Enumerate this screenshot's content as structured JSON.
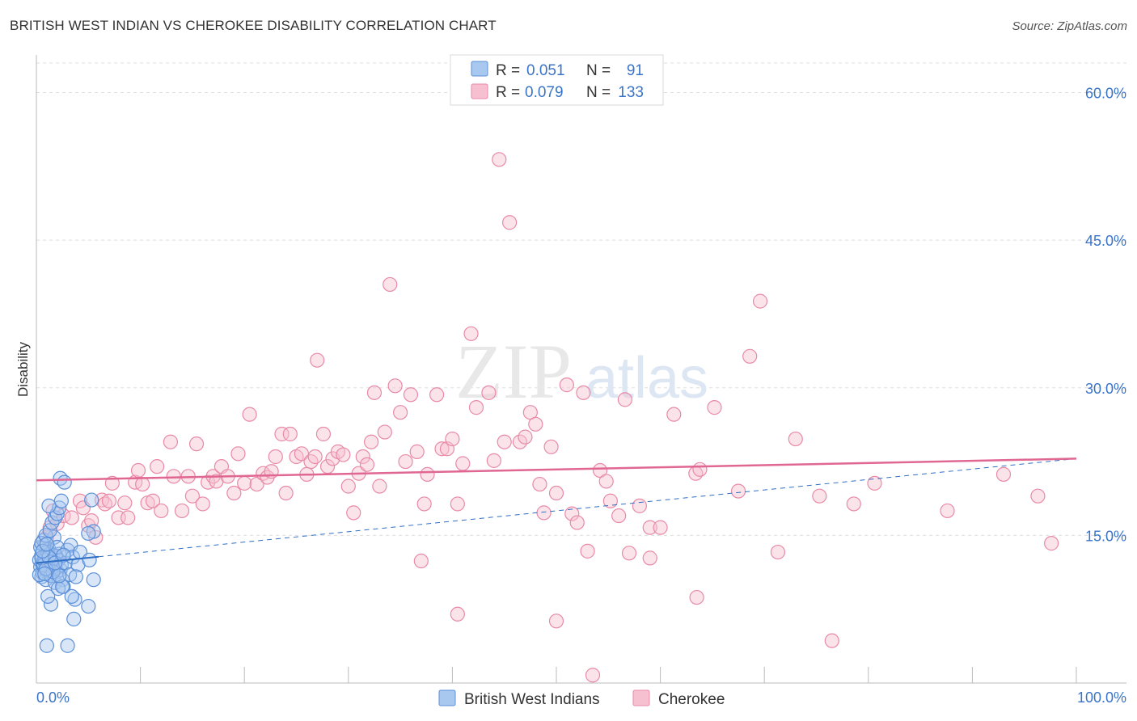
{
  "header": {
    "title": "BRITISH WEST INDIAN VS CHEROKEE DISABILITY CORRELATION CHART",
    "source": "Source: ZipAtlas.com"
  },
  "watermark": {
    "zip": "ZIP",
    "atlas": "atlas"
  },
  "colors": {
    "blue_fill": "#a9c8f0",
    "blue_stroke": "#5b8fd8",
    "blue_line": "#2f6ec4",
    "pink_fill": "#f7c0d0",
    "pink_stroke": "#e88aa8",
    "pink_line": "#e06792",
    "label": "#3a74c9",
    "grid": "#dddddd"
  },
  "legend": {
    "rows": [
      {
        "r_label": "R =",
        "r_value": "0.051",
        "n_label": "N =",
        "n_value": "91"
      },
      {
        "r_label": "R =",
        "r_value": "0.079",
        "n_label": "N =",
        "n_value": "133"
      }
    ]
  },
  "chart_data": {
    "type": "scatter",
    "title": "BRITISH WEST INDIAN VS CHEROKEE DISABILITY CORRELATION CHART",
    "xlabel": "",
    "ylabel": "Disability",
    "xlim": [
      0,
      100
    ],
    "ylim": [
      0,
      63
    ],
    "x_tick_labels": [
      "0.0%",
      "100.0%"
    ],
    "y_ticks": [
      15,
      30,
      45,
      60
    ],
    "y_tick_labels": [
      "15.0%",
      "30.0%",
      "45.0%",
      "60.0%"
    ],
    "grid": true,
    "legend_position": "top-center",
    "series": [
      {
        "name": "British West Indians",
        "r": 0.051,
        "n": 91,
        "trend": {
          "x": [
            0,
            100
          ],
          "y": [
            12.2,
            22.8
          ],
          "style": "solid-then-dashed",
          "solid_until_x": 6
        },
        "points": [
          [
            0.3,
            12.5
          ],
          [
            0.4,
            11.8
          ],
          [
            0.5,
            13.0
          ],
          [
            0.6,
            12.2
          ],
          [
            0.7,
            11.5
          ],
          [
            0.8,
            12.8
          ],
          [
            0.9,
            13.5
          ],
          [
            1.0,
            12.0
          ],
          [
            0.5,
            10.8
          ],
          [
            0.6,
            11.2
          ],
          [
            0.8,
            14.0
          ],
          [
            1.1,
            12.6
          ],
          [
            1.2,
            11.0
          ],
          [
            1.3,
            13.2
          ],
          [
            1.4,
            12.4
          ],
          [
            1.5,
            11.7
          ],
          [
            0.4,
            13.8
          ],
          [
            0.7,
            14.5
          ],
          [
            0.9,
            10.5
          ],
          [
            1.0,
            12.9
          ],
          [
            1.2,
            13.6
          ],
          [
            1.3,
            11.4
          ],
          [
            1.5,
            12.1
          ],
          [
            1.6,
            13.0
          ],
          [
            1.7,
            12.3
          ],
          [
            1.8,
            11.9
          ],
          [
            1.9,
            12.7
          ],
          [
            2.0,
            11.3
          ],
          [
            2.1,
            12.5
          ],
          [
            2.2,
            13.1
          ],
          [
            0.3,
            11.0
          ],
          [
            0.6,
            12.0
          ],
          [
            0.8,
            12.5
          ],
          [
            1.0,
            11.6
          ],
          [
            1.1,
            13.3
          ],
          [
            1.4,
            10.9
          ],
          [
            1.6,
            11.8
          ],
          [
            1.7,
            14.8
          ],
          [
            1.8,
            10.2
          ],
          [
            1.9,
            12.9
          ],
          [
            2.0,
            13.8
          ],
          [
            2.3,
            11.5
          ],
          [
            2.4,
            12.0
          ],
          [
            2.5,
            10.5
          ],
          [
            2.6,
            9.8
          ],
          [
            2.8,
            12.2
          ],
          [
            3.0,
            13.5
          ],
          [
            3.2,
            11.0
          ],
          [
            0.5,
            14.2
          ],
          [
            0.9,
            15.0
          ],
          [
            1.3,
            15.5
          ],
          [
            1.5,
            16.3
          ],
          [
            1.8,
            16.8
          ],
          [
            2.0,
            17.2
          ],
          [
            2.2,
            17.8
          ],
          [
            2.4,
            18.5
          ],
          [
            1.2,
            18.0
          ],
          [
            2.3,
            20.8
          ],
          [
            2.7,
            20.4
          ],
          [
            5.3,
            18.6
          ],
          [
            5.5,
            15.4
          ],
          [
            5.0,
            15.2
          ],
          [
            3.3,
            14.0
          ],
          [
            3.5,
            12.8
          ],
          [
            4.0,
            12.0
          ],
          [
            3.8,
            10.8
          ],
          [
            5.5,
            10.5
          ],
          [
            4.2,
            13.3
          ],
          [
            5.1,
            12.5
          ],
          [
            3.7,
            8.5
          ],
          [
            5.0,
            7.8
          ],
          [
            1.4,
            8.0
          ],
          [
            1.1,
            8.8
          ],
          [
            2.1,
            9.6
          ],
          [
            2.5,
            9.8
          ],
          [
            3.4,
            8.8
          ],
          [
            3.6,
            6.5
          ],
          [
            1.0,
            3.8
          ],
          [
            3.0,
            3.8
          ],
          [
            0.7,
            12.0
          ],
          [
            1.4,
            12.3
          ],
          [
            0.5,
            12.7
          ],
          [
            1.6,
            11.3
          ],
          [
            2.2,
            10.9
          ],
          [
            0.9,
            11.6
          ],
          [
            1.2,
            12.8
          ],
          [
            0.6,
            13.4
          ],
          [
            1.8,
            12.2
          ],
          [
            2.6,
            13.0
          ],
          [
            1.0,
            14.1
          ],
          [
            0.8,
            11.1
          ]
        ]
      },
      {
        "name": "Cherokee",
        "r": 0.079,
        "n": 133,
        "trend": {
          "x": [
            0,
            100
          ],
          "y": [
            20.6,
            22.8
          ],
          "style": "solid"
        },
        "points": [
          [
            1.0,
            14.8
          ],
          [
            1.3,
            15.8
          ],
          [
            1.6,
            17.5
          ],
          [
            2.0,
            16.2
          ],
          [
            2.6,
            17.0
          ],
          [
            3.4,
            16.8
          ],
          [
            4.2,
            18.5
          ],
          [
            4.5,
            17.8
          ],
          [
            5.0,
            16.0
          ],
          [
            5.3,
            16.5
          ],
          [
            5.7,
            14.8
          ],
          [
            6.3,
            18.6
          ],
          [
            6.6,
            18.2
          ],
          [
            7.0,
            18.5
          ],
          [
            7.3,
            20.3
          ],
          [
            7.9,
            16.8
          ],
          [
            8.5,
            18.3
          ],
          [
            8.8,
            16.8
          ],
          [
            9.5,
            20.4
          ],
          [
            9.8,
            21.6
          ],
          [
            10.2,
            20.2
          ],
          [
            10.7,
            18.3
          ],
          [
            11.2,
            18.5
          ],
          [
            11.6,
            22.0
          ],
          [
            12.0,
            17.5
          ],
          [
            12.9,
            24.5
          ],
          [
            13.2,
            21.0
          ],
          [
            14.0,
            17.5
          ],
          [
            14.6,
            21.0
          ],
          [
            15.0,
            19.0
          ],
          [
            15.4,
            24.3
          ],
          [
            16.0,
            18.2
          ],
          [
            16.5,
            20.4
          ],
          [
            17.0,
            21.0
          ],
          [
            17.3,
            20.5
          ],
          [
            17.8,
            22.0
          ],
          [
            18.4,
            21.0
          ],
          [
            19.0,
            19.3
          ],
          [
            19.4,
            23.3
          ],
          [
            20.0,
            20.3
          ],
          [
            20.5,
            27.3
          ],
          [
            21.2,
            20.2
          ],
          [
            21.8,
            21.3
          ],
          [
            22.2,
            20.9
          ],
          [
            22.6,
            21.5
          ],
          [
            23.0,
            23.0
          ],
          [
            23.6,
            25.3
          ],
          [
            24.4,
            25.3
          ],
          [
            24.0,
            19.3
          ],
          [
            25.0,
            23.0
          ],
          [
            25.5,
            23.3
          ],
          [
            26.0,
            21.2
          ],
          [
            26.4,
            22.5
          ],
          [
            26.8,
            23.0
          ],
          [
            27.0,
            32.8
          ],
          [
            27.6,
            25.3
          ],
          [
            28.0,
            22.0
          ],
          [
            28.5,
            22.8
          ],
          [
            29.0,
            23.5
          ],
          [
            29.5,
            23.2
          ],
          [
            30.0,
            20.0
          ],
          [
            30.5,
            17.3
          ],
          [
            31.0,
            21.3
          ],
          [
            31.4,
            23.0
          ],
          [
            31.8,
            22.2
          ],
          [
            32.2,
            24.5
          ],
          [
            32.5,
            29.5
          ],
          [
            33.0,
            20.0
          ],
          [
            33.5,
            25.5
          ],
          [
            34.0,
            40.5
          ],
          [
            34.5,
            30.2
          ],
          [
            35.0,
            27.5
          ],
          [
            35.5,
            22.5
          ],
          [
            36.0,
            29.3
          ],
          [
            36.6,
            23.5
          ],
          [
            37.3,
            18.2
          ],
          [
            37.6,
            21.2
          ],
          [
            38.5,
            29.3
          ],
          [
            39.0,
            23.8
          ],
          [
            39.5,
            23.8
          ],
          [
            40.0,
            24.8
          ],
          [
            40.5,
            18.2
          ],
          [
            41.0,
            22.3
          ],
          [
            41.8,
            35.5
          ],
          [
            42.3,
            28.0
          ],
          [
            43.5,
            29.5
          ],
          [
            44.0,
            22.6
          ],
          [
            44.5,
            53.2
          ],
          [
            45.0,
            24.5
          ],
          [
            45.5,
            46.8
          ],
          [
            46.5,
            24.5
          ],
          [
            47.0,
            25.0
          ],
          [
            47.5,
            27.5
          ],
          [
            48.0,
            26.3
          ],
          [
            48.4,
            20.2
          ],
          [
            48.8,
            17.3
          ],
          [
            49.5,
            24.0
          ],
          [
            50.0,
            19.3
          ],
          [
            51.0,
            30.3
          ],
          [
            51.5,
            17.2
          ],
          [
            52.0,
            16.3
          ],
          [
            52.6,
            29.5
          ],
          [
            54.2,
            21.6
          ],
          [
            54.8,
            20.5
          ],
          [
            55.2,
            18.5
          ],
          [
            56.0,
            17.0
          ],
          [
            56.6,
            28.8
          ],
          [
            58.0,
            18.0
          ],
          [
            59.0,
            15.8
          ],
          [
            60.0,
            15.8
          ],
          [
            61.3,
            27.3
          ],
          [
            63.4,
            21.3
          ],
          [
            63.8,
            21.7
          ],
          [
            65.2,
            28.0
          ],
          [
            67.5,
            19.5
          ],
          [
            68.6,
            33.2
          ],
          [
            69.6,
            38.8
          ],
          [
            71.3,
            13.3
          ],
          [
            73.0,
            24.8
          ],
          [
            75.3,
            19.0
          ],
          [
            76.5,
            4.3
          ],
          [
            78.6,
            18.2
          ],
          [
            80.6,
            20.3
          ],
          [
            87.6,
            17.5
          ],
          [
            93.0,
            21.2
          ],
          [
            96.3,
            19.0
          ],
          [
            97.6,
            14.2
          ],
          [
            57.0,
            13.2
          ],
          [
            53.0,
            13.4
          ],
          [
            59.0,
            12.7
          ],
          [
            37.0,
            12.4
          ],
          [
            40.5,
            7.0
          ],
          [
            50.0,
            6.3
          ],
          [
            53.5,
            0.8
          ],
          [
            63.5,
            8.7
          ]
        ]
      }
    ]
  },
  "bottom_legend": [
    {
      "label": "British West Indians"
    },
    {
      "label": "Cherokee"
    }
  ]
}
